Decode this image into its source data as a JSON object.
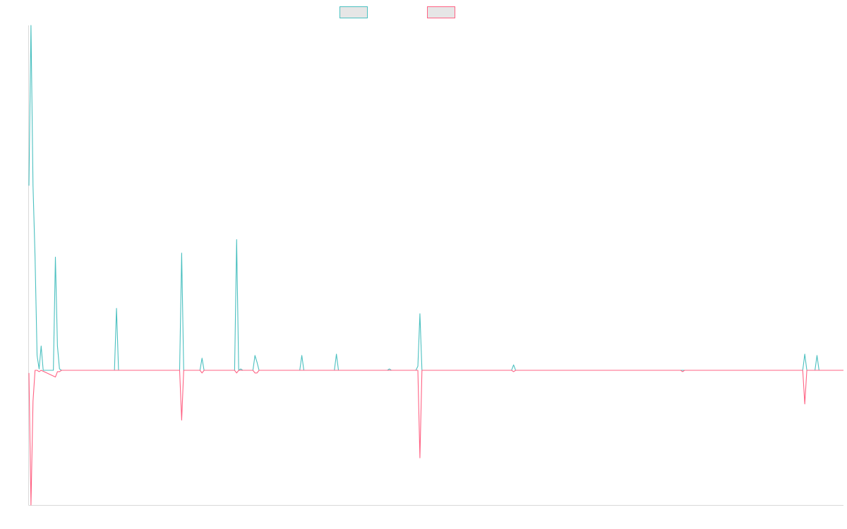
{
  "colors": {
    "series_a": "#4bc0c0",
    "series_b": "#ff6384",
    "legend_fill": "#e6e6e6",
    "axis": "#d9d9d9"
  },
  "legend": {
    "placement": "top-center",
    "items": [
      {
        "label": "",
        "color_key": "series_a"
      },
      {
        "label": "",
        "color_key": "series_b"
      }
    ]
  },
  "chart_data": {
    "type": "line",
    "title": "",
    "xlabel": "",
    "ylabel": "",
    "grid": false,
    "xlim": [
      0,
      400
    ],
    "ylim": [
      -100,
      256
    ],
    "x_tick_labels_visible": false,
    "y_tick_labels_visible": false,
    "series": [
      {
        "color_key": "series_a",
        "points": [
          [
            0,
            137
          ],
          [
            1,
            256
          ],
          [
            2,
            137
          ],
          [
            3,
            84
          ],
          [
            4,
            11
          ],
          [
            5,
            1
          ],
          [
            6,
            18
          ],
          [
            7,
            0
          ],
          [
            8,
            0
          ],
          [
            12,
            0
          ],
          [
            13,
            84
          ],
          [
            14,
            18
          ],
          [
            15,
            1
          ],
          [
            16,
            0
          ],
          [
            42,
            0
          ],
          [
            43,
            46
          ],
          [
            44,
            0
          ],
          [
            74,
            0
          ],
          [
            75,
            87
          ],
          [
            76,
            0
          ],
          [
            84,
            0
          ],
          [
            85,
            9
          ],
          [
            86,
            0
          ],
          [
            101,
            0
          ],
          [
            102,
            97
          ],
          [
            103,
            0
          ],
          [
            104,
            1
          ],
          [
            105,
            0
          ],
          [
            110,
            0
          ],
          [
            111,
            11
          ],
          [
            112,
            6
          ],
          [
            113,
            0
          ],
          [
            133,
            0
          ],
          [
            134,
            11
          ],
          [
            135,
            0
          ],
          [
            150,
            0
          ],
          [
            151,
            12
          ],
          [
            152,
            0
          ],
          [
            176,
            0
          ],
          [
            177,
            1
          ],
          [
            178,
            0
          ],
          [
            190,
            0
          ],
          [
            191,
            3
          ],
          [
            192,
            42
          ],
          [
            193,
            0
          ],
          [
            237,
            0
          ],
          [
            238,
            4
          ],
          [
            239,
            0
          ],
          [
            380,
            0
          ],
          [
            381,
            12
          ],
          [
            382,
            0
          ],
          [
            386,
            0
          ],
          [
            387,
            11
          ],
          [
            388,
            0
          ],
          [
            400,
            0
          ]
        ]
      },
      {
        "color_key": "series_b",
        "points": [
          [
            0,
            -2
          ],
          [
            1,
            -100
          ],
          [
            2,
            -23
          ],
          [
            3,
            0
          ],
          [
            4,
            0
          ],
          [
            5,
            -1
          ],
          [
            6,
            0
          ],
          [
            13,
            -5
          ],
          [
            14,
            -1
          ],
          [
            15,
            -1
          ],
          [
            16,
            0
          ],
          [
            74,
            0
          ],
          [
            75,
            -37
          ],
          [
            76,
            0
          ],
          [
            84,
            0
          ],
          [
            85,
            -2
          ],
          [
            86,
            0
          ],
          [
            101,
            0
          ],
          [
            102,
            -2
          ],
          [
            103,
            0
          ],
          [
            104,
            0
          ],
          [
            110,
            0
          ],
          [
            111,
            -2
          ],
          [
            112,
            -2
          ],
          [
            113,
            0
          ],
          [
            176,
            0
          ],
          [
            177,
            0
          ],
          [
            178,
            0
          ],
          [
            191,
            0
          ],
          [
            192,
            -65
          ],
          [
            193,
            0
          ],
          [
            237,
            0
          ],
          [
            238,
            -1
          ],
          [
            239,
            0
          ],
          [
            320,
            0
          ],
          [
            321,
            -1
          ],
          [
            322,
            0
          ],
          [
            380,
            0
          ],
          [
            381,
            -25
          ],
          [
            382,
            0
          ],
          [
            400,
            0
          ]
        ]
      }
    ]
  }
}
